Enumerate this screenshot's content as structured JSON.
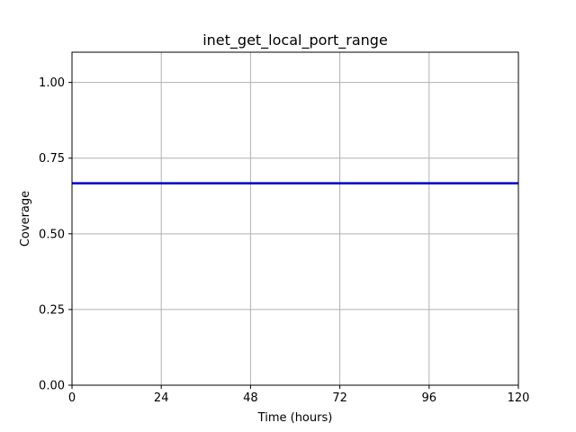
{
  "chart_data": {
    "type": "line",
    "title": "inet_get_local_port_range",
    "xlabel": "Time (hours)",
    "ylabel": "Coverage",
    "xlim": [
      0,
      120
    ],
    "ylim": [
      0,
      1.1
    ],
    "x_ticks": [
      0,
      24,
      48,
      72,
      96,
      120
    ],
    "x_tick_labels": [
      "0",
      "24",
      "48",
      "72",
      "96",
      "120"
    ],
    "y_ticks": [
      0,
      0.25,
      0.5,
      0.75,
      1.0
    ],
    "y_tick_labels": [
      "0.00",
      "0.25",
      "0.50",
      "0.75",
      "1.00"
    ],
    "grid": true,
    "series": [
      {
        "color": "#0000cc",
        "x": [
          0,
          120
        ],
        "y": [
          0.667,
          0.667
        ]
      }
    ]
  }
}
